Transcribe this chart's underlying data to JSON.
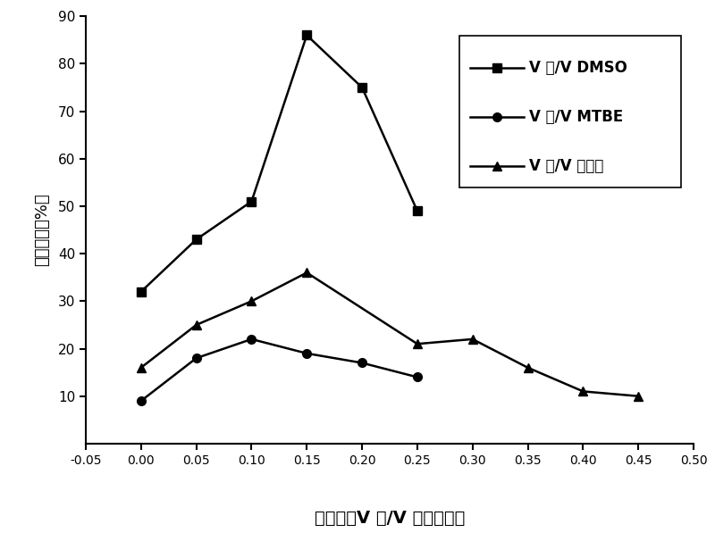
{
  "x_dmso": [
    0.0,
    0.05,
    0.1,
    0.15,
    0.2,
    0.25
  ],
  "y_dmso": [
    32,
    43,
    51,
    86,
    75,
    49
  ],
  "x_mtbe": [
    0.0,
    0.05,
    0.1,
    0.15,
    0.2,
    0.25
  ],
  "y_mtbe": [
    9,
    18,
    22,
    19,
    17,
    14
  ],
  "x_cyc": [
    0.0,
    0.05,
    0.1,
    0.15,
    0.25,
    0.3,
    0.35,
    0.4,
    0.45
  ],
  "y_cyc": [
    16,
    25,
    30,
    36,
    21,
    22,
    16,
    11,
    10
  ],
  "xlim": [
    -0.05,
    0.5
  ],
  "ylim": [
    0,
    90
  ],
  "xtick_vals": [
    -0.05,
    0.0,
    0.05,
    0.1,
    0.15,
    0.2,
    0.25,
    0.3,
    0.35,
    0.4,
    0.45,
    0.5
  ],
  "xtick_labels": [
    "-0.05",
    "0.00",
    "0.05",
    "0.10",
    "0.15",
    "0.20",
    "0.25",
    "0.30",
    "0.35",
    "0.40",
    "0.45",
    "0.50"
  ],
  "ytick_vals": [
    10,
    20,
    30,
    40,
    50,
    60,
    70,
    80,
    90
  ],
  "ytick_labels": [
    "10",
    "20",
    "30",
    "40",
    "50",
    "60",
    "70",
    "80",
    "90"
  ],
  "ylabel_cn": "产物收率（%）",
  "xlabel_cn": "含水量（V",
  "xlabel_sub": "水",
  "xlabel_rest": "/V",
  "xlabel_sub2": "有机溶剂",
  "xlabel_end": "）",
  "leg1_main": "V",
  "leg1_sub": "水",
  "leg1_rest": "/V",
  "leg1_subscript": "DMSO",
  "leg2_subscript": "MTBE",
  "leg3_cn": "环己烷"
}
